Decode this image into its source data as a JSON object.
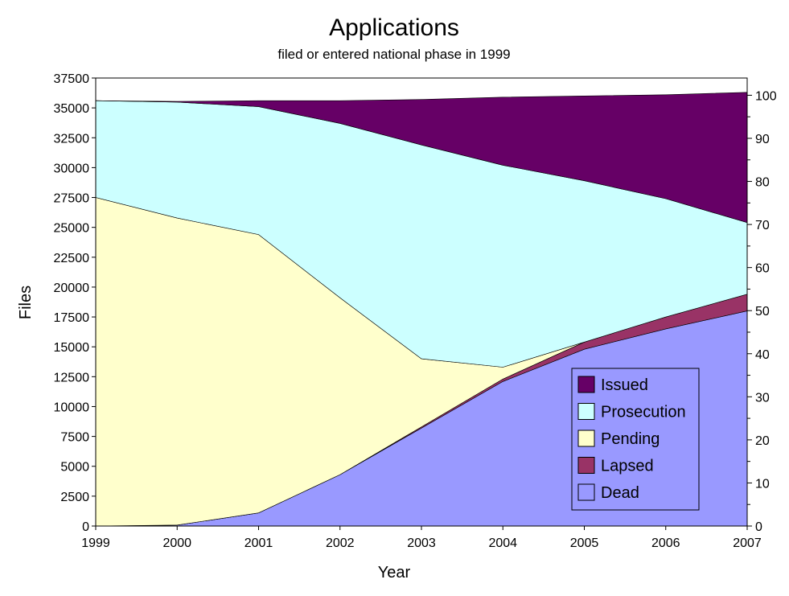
{
  "chart_data": {
    "type": "area",
    "title": "Applications",
    "subtitle": "filed or entered national phase in 1999",
    "xlabel": "Year",
    "ylabel": "Files",
    "x": [
      "1999",
      "2000",
      "2001",
      "2002",
      "2003",
      "2004",
      "2005",
      "2006",
      "2007"
    ],
    "ylim": [
      0,
      37500
    ],
    "y_ticks": [
      "0",
      "2500",
      "5000",
      "7500",
      "10000",
      "12500",
      "15000",
      "17500",
      "20000",
      "22500",
      "25000",
      "27500",
      "30000",
      "32500",
      "35000",
      "37500"
    ],
    "y2lim": [
      0,
      104
    ],
    "y2_ticks": [
      "0",
      "10",
      "20",
      "30",
      "40",
      "50",
      "60",
      "70",
      "80",
      "90",
      "100"
    ],
    "stacking": "cumulative",
    "legend_position": "lower-right",
    "grid": false,
    "series": [
      {
        "name": "Dead",
        "color": "#9999ff",
        "values": [
          0,
          80,
          1100,
          4300,
          8200,
          12100,
          14800,
          16500,
          18000
        ]
      },
      {
        "name": "Lapsed",
        "color": "#993366",
        "values": [
          0,
          0,
          0,
          0,
          100,
          200,
          600,
          1000,
          1400
        ]
      },
      {
        "name": "Pending",
        "color": "#ffffcc",
        "values": [
          27500,
          25700,
          23300,
          14800,
          5700,
          1000,
          0,
          0,
          0
        ]
      },
      {
        "name": "Prosecution",
        "color": "#ccffff",
        "values": [
          8100,
          9700,
          10700,
          14600,
          17900,
          16900,
          13500,
          9900,
          6000
        ]
      },
      {
        "name": "Issued",
        "color": "#660066",
        "values": [
          0,
          60,
          500,
          1900,
          3800,
          5700,
          7100,
          8700,
          10900
        ]
      }
    ],
    "legend_order": [
      "Issued",
      "Prosecution",
      "Pending",
      "Lapsed",
      "Dead"
    ]
  }
}
